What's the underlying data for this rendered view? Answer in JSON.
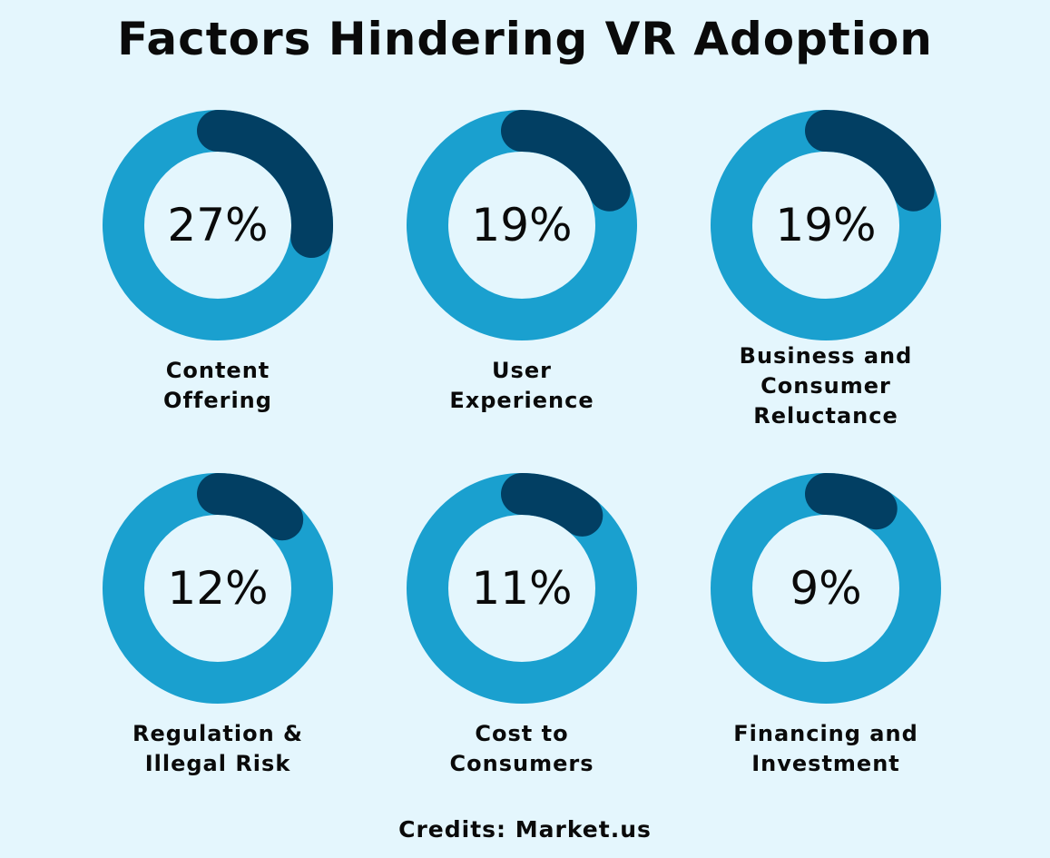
{
  "title": "Factors Hindering VR Adoption",
  "credits": "Credits: Market.us",
  "colors": {
    "background": "#e4f6fd",
    "ring": "#1aa0cf",
    "segment": "#023f63",
    "text": "#0a0a0a"
  },
  "chart_data": {
    "type": "pie",
    "variant": "donut",
    "unit": "%",
    "categories": [
      "Content Offering",
      "User Experience",
      "Business and Consumer Reluctance",
      "Regulation & Illegal Risk",
      "Cost to Consumers",
      "Financing and Investment"
    ],
    "values": [
      27,
      19,
      19,
      12,
      11,
      9
    ],
    "value_labels": [
      "27%",
      "19%",
      "19%",
      "12%",
      "11%",
      "9%"
    ],
    "display_labels": [
      "Content\nOffering",
      "User\nExperience",
      "Business and\nConsumer\nReluctance",
      "Regulation &\nIllegal Risk",
      "Cost to\nConsumers",
      "Financing and\nInvestment"
    ],
    "legend": "none",
    "grid": false
  }
}
